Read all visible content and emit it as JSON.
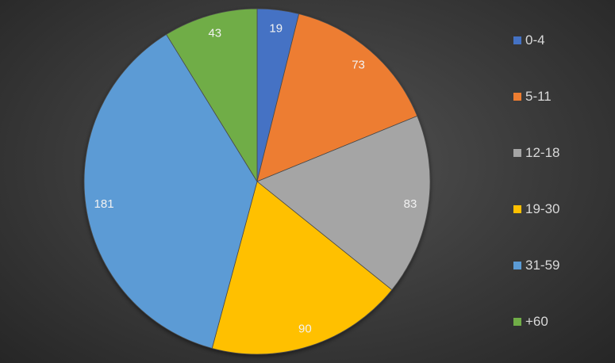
{
  "chart_data": {
    "type": "pie",
    "categories": [
      "0-4",
      "5-11",
      "12-18",
      "19-30",
      "31-59",
      "+60"
    ],
    "values": [
      19,
      73,
      83,
      90,
      181,
      43
    ],
    "colors": [
      "#4472C4",
      "#ED7D31",
      "#A5A5A5",
      "#FFC000",
      "#5B9BD5",
      "#70AD47"
    ],
    "data_labels": [
      "19",
      "73",
      "83",
      "90",
      "181",
      "43"
    ],
    "legend_position": "right",
    "start_angle": "12 o'clock, clockwise"
  }
}
